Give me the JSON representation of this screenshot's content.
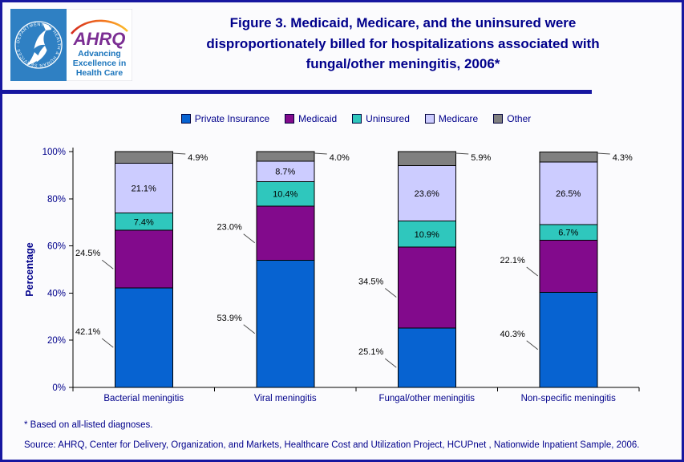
{
  "header": {
    "logo": {
      "seal_text": "DEPARTMENT OF HEALTH & HUMAN SERVICES · USA",
      "brand": "AHRQ",
      "tagline_lines": [
        "Advancing",
        "Excellence in",
        "Health Care"
      ]
    },
    "title_lines": [
      "Figure 3. Medicaid, Medicare, and the uninsured were",
      "disproportionately billed for hospitalizations associated with",
      "fungal/other meningitis, 2006*"
    ]
  },
  "chart_data": {
    "type": "bar",
    "subtype": "stacked-percentage",
    "categories": [
      "Bacterial meningitis",
      "Viral meningitis",
      "Fungal/other meningitis",
      "Non-specific meningitis"
    ],
    "series": [
      {
        "name": "Private Insurance",
        "color": "#0763D1",
        "values": [
          42.1,
          53.9,
          25.1,
          40.3
        ],
        "label_style": "leader-left"
      },
      {
        "name": "Medicaid",
        "color": "#820A8C",
        "values": [
          24.5,
          23.0,
          34.5,
          22.1
        ],
        "label_style": "leader-left"
      },
      {
        "name": "Uninsured",
        "color": "#2FC7BD",
        "values": [
          7.4,
          10.4,
          10.9,
          6.7
        ],
        "label_style": "inside"
      },
      {
        "name": "Medicare",
        "color": "#CCCCFF",
        "values": [
          21.1,
          8.7,
          23.6,
          26.5
        ],
        "label_style": "inside"
      },
      {
        "name": "Other",
        "color": "#808080",
        "values": [
          4.9,
          4.0,
          5.9,
          4.3
        ],
        "label_style": "leader-right-top"
      }
    ],
    "ylabel": "Percentage",
    "xlabel": "",
    "ylim": [
      0,
      100
    ],
    "yticks": [
      0,
      20,
      40,
      60,
      80,
      100
    ],
    "ytick_labels": [
      "0%",
      "20%",
      "40%",
      "60%",
      "80%",
      "100%"
    ],
    "grid": false,
    "legend_position": "top",
    "value_label_format": "0.0%"
  },
  "footnotes": {
    "note": "* Based on all-listed diagnoses.",
    "source": "Source: AHRQ, Center for Delivery, Organization, and Markets, Healthcare Cost and Utilization Project, HCUPnet , Nationwide Inpatient Sample, 2006."
  },
  "colors": {
    "navy_text": "#00008B",
    "page_border": "#1717A0",
    "axis": "#000000",
    "value_label": "#000000",
    "leader_line": "#4D4D4D",
    "logo_blue_panel": "#2F80C3",
    "logo_brand_purple": "#7B2E93",
    "logo_tagline_blue": "#1B75BC"
  }
}
